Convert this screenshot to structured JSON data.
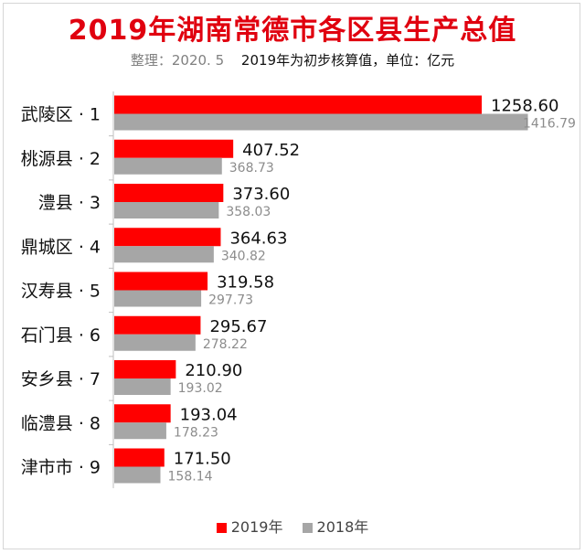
{
  "title": "2019年湖南常德市各区县生产总值",
  "subtitle": {
    "note": "整理：2020. 5",
    "text": "2019年为初步核算值，单位：亿元"
  },
  "colors": {
    "series_2019": "#ff0000",
    "series_2018": "#a6a6a6"
  },
  "chart_data": {
    "type": "bar",
    "orientation": "horizontal",
    "categories": [
      "武陵区 · 1",
      "桃源县 · 2",
      "澧县 · 3",
      "鼎城区 · 4",
      "汉寿县 · 5",
      "石门县 · 6",
      "安乡县 · 7",
      "临澧县 · 8",
      "津市市 · 9"
    ],
    "series": [
      {
        "name": "2019年",
        "values": [
          1258.6,
          407.52,
          373.6,
          364.63,
          319.58,
          295.67,
          210.9,
          193.04,
          171.5
        ]
      },
      {
        "name": "2018年",
        "values": [
          1416.79,
          368.73,
          358.03,
          340.82,
          297.73,
          278.22,
          193.02,
          178.23,
          158.14
        ]
      }
    ],
    "value_labels": [
      [
        "1258.60",
        "407.52",
        "373.60",
        "364.63",
        "319.58",
        "295.67",
        "210.90",
        "193.04",
        "171.50"
      ],
      [
        "1416.79",
        "368.73",
        "358.03",
        "340.82",
        "297.73",
        "278.22",
        "193.02",
        "178.23",
        "158.14"
      ]
    ],
    "xlim": [
      0,
      1600
    ],
    "grid": false,
    "legend_position": "bottom"
  }
}
